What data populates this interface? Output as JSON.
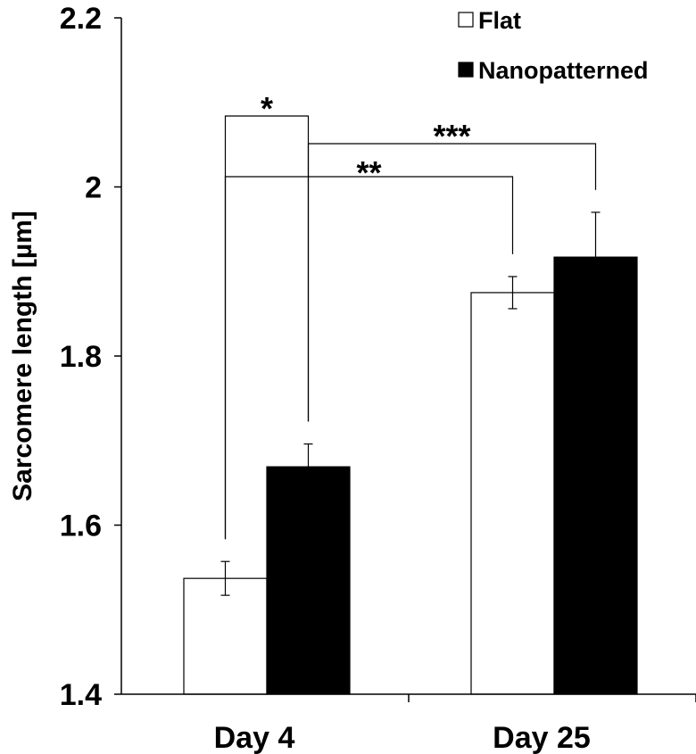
{
  "chart_data": {
    "type": "bar",
    "title": "",
    "xlabel": "",
    "ylabel": "Sarcomere length [µm]",
    "categories": [
      "Day 4",
      "Day 25"
    ],
    "ylim": [
      1.4,
      2.2
    ],
    "yticks": [
      "1.4",
      "1.6",
      "1.8",
      "2",
      "2.2"
    ],
    "grid": false,
    "legend_position": "top-right",
    "series": [
      {
        "name": "Flat",
        "color": "#ffffff",
        "values": [
          1.537,
          1.875
        ],
        "errors": [
          0.02,
          0.019
        ]
      },
      {
        "name": "Nanopatterned",
        "color": "#000000",
        "values": [
          1.669,
          1.917
        ],
        "errors": [
          0.027,
          0.053
        ]
      }
    ],
    "significance": [
      {
        "label": "*",
        "from": {
          "category": 0,
          "series": 0
        },
        "to": {
          "category": 0,
          "series": 1
        }
      },
      {
        "label": "**",
        "from": {
          "category": 0,
          "series": 0
        },
        "to": {
          "category": 1,
          "series": 0
        }
      },
      {
        "label": "***",
        "from": {
          "category": 0,
          "series": 1
        },
        "to": {
          "category": 1,
          "series": 1
        }
      }
    ]
  }
}
